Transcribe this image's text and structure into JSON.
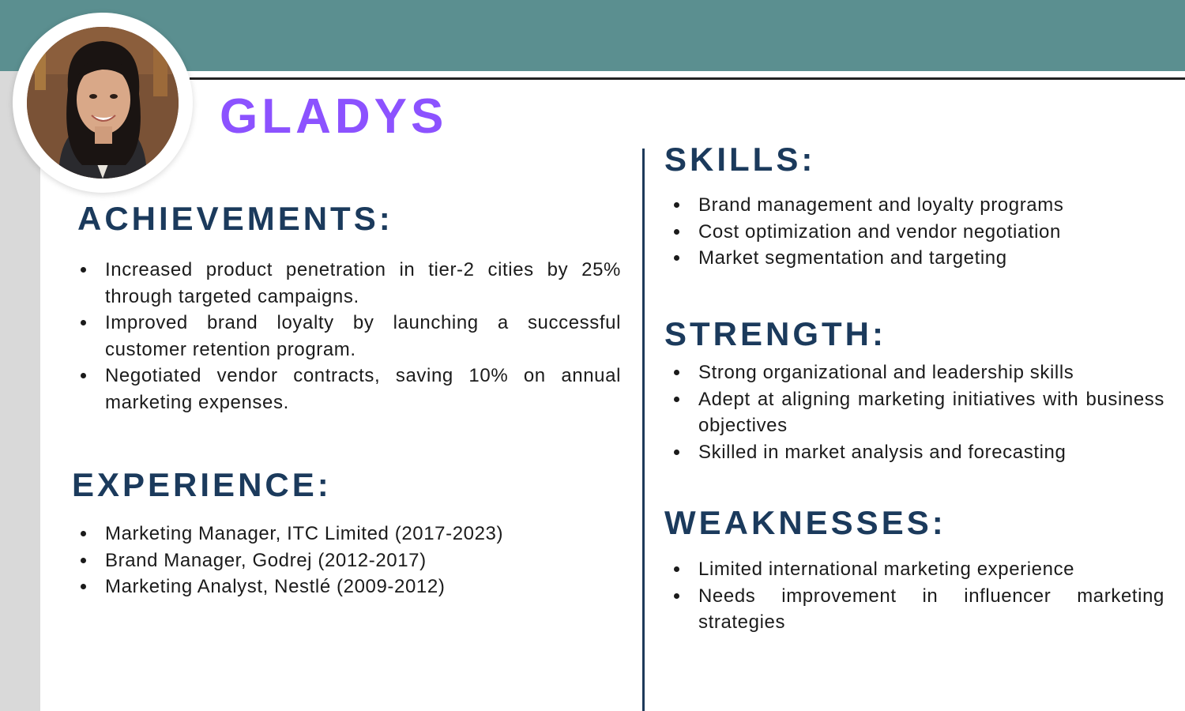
{
  "profile": {
    "name": "GLADYS"
  },
  "achievements": {
    "title": "ACHIEVEMENTS:",
    "items": [
      "Increased product penetration in tier-2 cities by 25% through targeted campaigns.",
      "Improved brand loyalty by launching a successful customer retention program.",
      "Negotiated vendor contracts, saving 10% on annual marketing expenses."
    ]
  },
  "experience": {
    "title": "EXPERIENCE:",
    "items": [
      "Marketing Manager, ITC Limited (2017-2023)",
      "Brand Manager, Godrej (2012-2017)",
      "Marketing Analyst, Nestlé (2009-2012)"
    ]
  },
  "skills": {
    "title": "SKILLS:",
    "items": [
      "Brand management and loyalty programs",
      "Cost optimization and vendor negotiation",
      "Market segmentation and targeting"
    ]
  },
  "strength": {
    "title": "STRENGTH:",
    "items": [
      "Strong organizational and leadership skills",
      "Adept at aligning marketing initiatives with business objectives",
      "Skilled in market analysis and forecasting"
    ]
  },
  "weaknesses": {
    "title": "WEAKNESSES:",
    "items": [
      "Limited international marketing experience",
      "Needs improvement in influencer marketing strategies"
    ]
  },
  "colors": {
    "header_band": "#5b8f90",
    "side_band": "#d9d9d9",
    "name": "#8c52ff",
    "section_title": "#1b3a5c"
  }
}
